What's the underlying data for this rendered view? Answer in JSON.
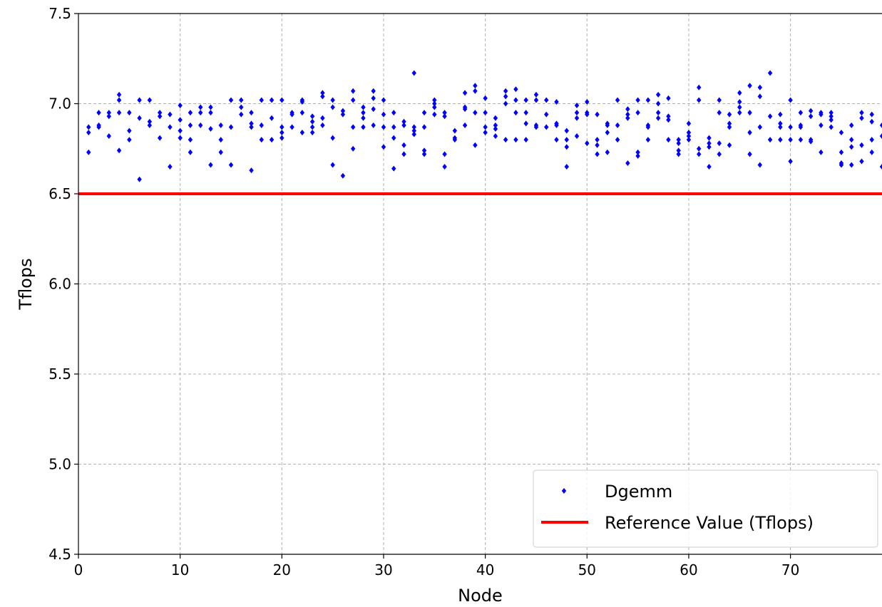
{
  "chart_data": {
    "type": "scatter",
    "title": "",
    "xlabel": "Node",
    "ylabel": "Tflops",
    "xlim": [
      0,
      79
    ],
    "ylim": [
      4.5,
      7.5
    ],
    "x_ticks": [
      "0",
      "10",
      "20",
      "30",
      "40",
      "50",
      "60",
      "70"
    ],
    "y_ticks": [
      "4.5",
      "5.0",
      "5.5",
      "6.0",
      "6.5",
      "7.0",
      "7.5"
    ],
    "grid": true,
    "legend_position": "lower-right",
    "colors": {
      "scatter": "#0000ff",
      "reference": "#ff0000"
    },
    "series": [
      {
        "name": "Dgemm",
        "marker": "diamond",
        "points": [
          [
            1,
            6.73
          ],
          [
            1,
            6.84
          ],
          [
            1,
            6.87
          ],
          [
            2,
            6.87
          ],
          [
            2,
            6.88
          ],
          [
            2,
            6.95
          ],
          [
            3,
            6.82
          ],
          [
            3,
            6.93
          ],
          [
            3,
            6.95
          ],
          [
            4,
            6.74
          ],
          [
            4,
            7.02
          ],
          [
            4,
            7.05
          ],
          [
            4,
            6.95
          ],
          [
            5,
            6.8
          ],
          [
            5,
            6.85
          ],
          [
            5,
            6.95
          ],
          [
            6,
            6.58
          ],
          [
            6,
            6.92
          ],
          [
            6,
            7.02
          ],
          [
            7,
            6.88
          ],
          [
            7,
            6.9
          ],
          [
            7,
            7.02
          ],
          [
            8,
            6.81
          ],
          [
            8,
            6.93
          ],
          [
            8,
            6.95
          ],
          [
            9,
            6.65
          ],
          [
            9,
            6.87
          ],
          [
            9,
            6.94
          ],
          [
            10,
            6.81
          ],
          [
            10,
            6.85
          ],
          [
            10,
            6.91
          ],
          [
            10,
            6.99
          ],
          [
            11,
            6.73
          ],
          [
            11,
            6.8
          ],
          [
            11,
            6.88
          ],
          [
            11,
            6.95
          ],
          [
            12,
            6.88
          ],
          [
            12,
            6.95
          ],
          [
            12,
            6.98
          ],
          [
            13,
            6.66
          ],
          [
            13,
            6.86
          ],
          [
            13,
            6.95
          ],
          [
            13,
            6.98
          ],
          [
            14,
            6.73
          ],
          [
            14,
            6.8
          ],
          [
            14,
            6.88
          ],
          [
            15,
            6.66
          ],
          [
            15,
            6.87
          ],
          [
            15,
            7.02
          ],
          [
            16,
            6.94
          ],
          [
            16,
            6.98
          ],
          [
            16,
            7.02
          ],
          [
            17,
            6.63
          ],
          [
            17,
            6.87
          ],
          [
            17,
            6.89
          ],
          [
            17,
            6.95
          ],
          [
            18,
            6.8
          ],
          [
            18,
            6.88
          ],
          [
            18,
            7.02
          ],
          [
            19,
            6.8
          ],
          [
            19,
            6.92
          ],
          [
            19,
            7.02
          ],
          [
            20,
            6.81
          ],
          [
            20,
            6.84
          ],
          [
            20,
            6.87
          ],
          [
            20,
            7.02
          ],
          [
            21,
            6.87
          ],
          [
            21,
            6.94
          ],
          [
            21,
            6.95
          ],
          [
            22,
            6.84
          ],
          [
            22,
            6.95
          ],
          [
            22,
            7.01
          ],
          [
            22,
            7.02
          ],
          [
            23,
            6.84
          ],
          [
            23,
            6.87
          ],
          [
            23,
            6.9
          ],
          [
            23,
            6.93
          ],
          [
            24,
            6.88
          ],
          [
            24,
            6.92
          ],
          [
            24,
            7.04
          ],
          [
            24,
            7.06
          ],
          [
            25,
            6.66
          ],
          [
            25,
            6.81
          ],
          [
            25,
            6.98
          ],
          [
            25,
            7.02
          ],
          [
            26,
            6.6
          ],
          [
            26,
            6.94
          ],
          [
            26,
            6.96
          ],
          [
            27,
            6.75
          ],
          [
            27,
            6.87
          ],
          [
            27,
            7.02
          ],
          [
            27,
            7.07
          ],
          [
            28,
            6.87
          ],
          [
            28,
            6.92
          ],
          [
            28,
            6.95
          ],
          [
            28,
            6.98
          ],
          [
            29,
            6.88
          ],
          [
            29,
            6.97
          ],
          [
            29,
            7.03
          ],
          [
            29,
            7.07
          ],
          [
            30,
            6.76
          ],
          [
            30,
            6.87
          ],
          [
            30,
            6.94
          ],
          [
            30,
            7.02
          ],
          [
            31,
            6.64
          ],
          [
            31,
            6.81
          ],
          [
            31,
            6.87
          ],
          [
            31,
            6.95
          ],
          [
            32,
            6.72
          ],
          [
            32,
            6.77
          ],
          [
            32,
            6.88
          ],
          [
            32,
            6.9
          ],
          [
            33,
            6.83
          ],
          [
            33,
            6.85
          ],
          [
            33,
            6.87
          ],
          [
            33,
            7.17
          ],
          [
            34,
            6.72
          ],
          [
            34,
            6.74
          ],
          [
            34,
            6.87
          ],
          [
            34,
            6.95
          ],
          [
            35,
            6.94
          ],
          [
            35,
            6.98
          ],
          [
            35,
            7.0
          ],
          [
            35,
            7.02
          ],
          [
            36,
            6.65
          ],
          [
            36,
            6.72
          ],
          [
            36,
            6.93
          ],
          [
            36,
            6.95
          ],
          [
            37,
            6.8
          ],
          [
            37,
            6.81
          ],
          [
            37,
            6.85
          ],
          [
            38,
            6.88
          ],
          [
            38,
            6.97
          ],
          [
            38,
            6.98
          ],
          [
            38,
            7.06
          ],
          [
            39,
            6.77
          ],
          [
            39,
            6.95
          ],
          [
            39,
            7.07
          ],
          [
            39,
            7.1
          ],
          [
            40,
            6.84
          ],
          [
            40,
            6.87
          ],
          [
            40,
            6.95
          ],
          [
            40,
            7.03
          ],
          [
            41,
            6.82
          ],
          [
            41,
            6.86
          ],
          [
            41,
            6.88
          ],
          [
            41,
            6.92
          ],
          [
            42,
            6.8
          ],
          [
            42,
            7.0
          ],
          [
            42,
            7.04
          ],
          [
            42,
            7.07
          ],
          [
            43,
            6.8
          ],
          [
            43,
            6.95
          ],
          [
            43,
            7.02
          ],
          [
            43,
            7.08
          ],
          [
            44,
            6.8
          ],
          [
            44,
            6.89
          ],
          [
            44,
            6.95
          ],
          [
            44,
            7.02
          ],
          [
            45,
            6.87
          ],
          [
            45,
            6.88
          ],
          [
            45,
            7.02
          ],
          [
            45,
            7.05
          ],
          [
            46,
            6.87
          ],
          [
            46,
            6.94
          ],
          [
            46,
            7.02
          ],
          [
            47,
            6.8
          ],
          [
            47,
            6.88
          ],
          [
            47,
            6.89
          ],
          [
            47,
            7.01
          ],
          [
            48,
            6.65
          ],
          [
            48,
            6.76
          ],
          [
            48,
            6.8
          ],
          [
            48,
            6.85
          ],
          [
            49,
            6.82
          ],
          [
            49,
            6.92
          ],
          [
            49,
            6.95
          ],
          [
            49,
            6.99
          ],
          [
            50,
            6.78
          ],
          [
            50,
            6.94
          ],
          [
            50,
            6.95
          ],
          [
            50,
            7.01
          ],
          [
            51,
            6.72
          ],
          [
            51,
            6.77
          ],
          [
            51,
            6.8
          ],
          [
            51,
            6.94
          ],
          [
            52,
            6.73
          ],
          [
            52,
            6.84
          ],
          [
            52,
            6.88
          ],
          [
            52,
            6.89
          ],
          [
            53,
            6.8
          ],
          [
            53,
            6.88
          ],
          [
            53,
            7.02
          ],
          [
            54,
            6.67
          ],
          [
            54,
            6.92
          ],
          [
            54,
            6.94
          ],
          [
            54,
            6.97
          ],
          [
            55,
            6.71
          ],
          [
            55,
            6.73
          ],
          [
            55,
            6.95
          ],
          [
            55,
            7.02
          ],
          [
            56,
            6.8
          ],
          [
            56,
            6.87
          ],
          [
            56,
            6.88
          ],
          [
            56,
            7.02
          ],
          [
            57,
            6.92
          ],
          [
            57,
            6.95
          ],
          [
            57,
            7.0
          ],
          [
            57,
            7.05
          ],
          [
            58,
            6.8
          ],
          [
            58,
            6.91
          ],
          [
            58,
            6.93
          ],
          [
            58,
            7.03
          ],
          [
            59,
            6.72
          ],
          [
            59,
            6.74
          ],
          [
            59,
            6.78
          ],
          [
            59,
            6.8
          ],
          [
            60,
            6.8
          ],
          [
            60,
            6.82
          ],
          [
            60,
            6.84
          ],
          [
            60,
            6.89
          ],
          [
            61,
            6.72
          ],
          [
            61,
            6.75
          ],
          [
            61,
            7.02
          ],
          [
            61,
            7.09
          ],
          [
            62,
            6.65
          ],
          [
            62,
            6.76
          ],
          [
            62,
            6.78
          ],
          [
            62,
            6.81
          ],
          [
            63,
            6.72
          ],
          [
            63,
            6.78
          ],
          [
            63,
            6.95
          ],
          [
            63,
            7.02
          ],
          [
            64,
            6.77
          ],
          [
            64,
            6.87
          ],
          [
            64,
            6.89
          ],
          [
            64,
            6.94
          ],
          [
            65,
            6.95
          ],
          [
            65,
            6.98
          ],
          [
            65,
            7.01
          ],
          [
            65,
            7.06
          ],
          [
            66,
            6.72
          ],
          [
            66,
            6.84
          ],
          [
            66,
            6.95
          ],
          [
            66,
            7.1
          ],
          [
            67,
            6.66
          ],
          [
            67,
            6.87
          ],
          [
            67,
            7.04
          ],
          [
            67,
            7.09
          ],
          [
            68,
            6.8
          ],
          [
            68,
            6.93
          ],
          [
            68,
            7.17
          ],
          [
            69,
            6.8
          ],
          [
            69,
            6.87
          ],
          [
            69,
            6.89
          ],
          [
            69,
            6.94
          ],
          [
            70,
            6.68
          ],
          [
            70,
            6.8
          ],
          [
            70,
            6.87
          ],
          [
            70,
            7.02
          ],
          [
            71,
            6.8
          ],
          [
            71,
            6.87
          ],
          [
            71,
            6.88
          ],
          [
            71,
            6.95
          ],
          [
            72,
            6.79
          ],
          [
            72,
            6.8
          ],
          [
            72,
            6.93
          ],
          [
            72,
            6.96
          ],
          [
            73,
            6.73
          ],
          [
            73,
            6.88
          ],
          [
            73,
            6.94
          ],
          [
            73,
            6.95
          ],
          [
            74,
            6.87
          ],
          [
            74,
            6.91
          ],
          [
            74,
            6.93
          ],
          [
            74,
            6.95
          ],
          [
            75,
            6.66
          ],
          [
            75,
            6.67
          ],
          [
            75,
            6.73
          ],
          [
            75,
            6.84
          ],
          [
            76,
            6.66
          ],
          [
            76,
            6.76
          ],
          [
            76,
            6.8
          ],
          [
            76,
            6.88
          ],
          [
            77,
            6.68
          ],
          [
            77,
            6.77
          ],
          [
            77,
            6.92
          ],
          [
            77,
            6.95
          ],
          [
            78,
            6.73
          ],
          [
            78,
            6.8
          ],
          [
            78,
            6.9
          ],
          [
            78,
            6.94
          ],
          [
            79,
            6.65
          ],
          [
            79,
            6.82
          ],
          [
            79,
            6.88
          ]
        ]
      },
      {
        "name": "Reference Value (Tflops)",
        "type": "line",
        "y": 6.5
      }
    ]
  }
}
